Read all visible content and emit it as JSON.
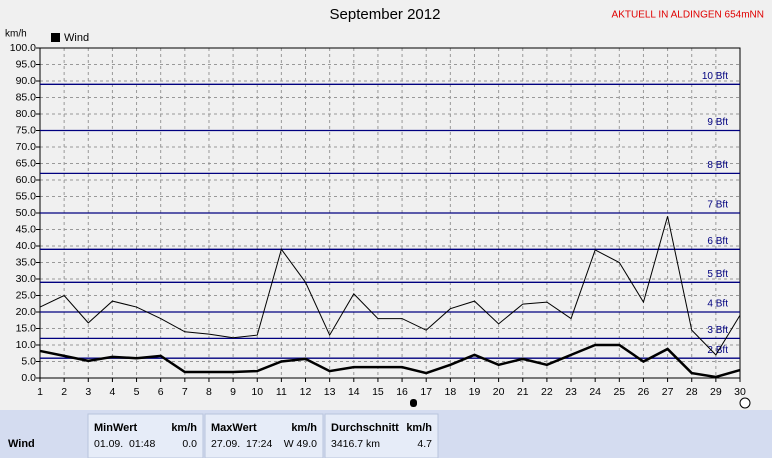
{
  "chart_data": {
    "type": "line",
    "title": "September 2012",
    "subtitle": "AKTUELL IN ALDINGEN 654mNN",
    "y_label": "km/h",
    "categories": [
      "1",
      "2",
      "3",
      "4",
      "5",
      "6",
      "7",
      "8",
      "9",
      "10",
      "11",
      "12",
      "13",
      "14",
      "15",
      "16",
      "17",
      "18",
      "19",
      "20",
      "21",
      "22",
      "23",
      "24",
      "25",
      "26",
      "27",
      "28",
      "29",
      "30"
    ],
    "series": [
      {
        "color": "#000000",
        "width": 1,
        "values": [
          21.5,
          25,
          16.7,
          23.3,
          21.5,
          18,
          14,
          13.3,
          12.2,
          13,
          39,
          29,
          13,
          25.5,
          18,
          18,
          14.5,
          21,
          23.3,
          16.4,
          22.4,
          23,
          18,
          38.8,
          35,
          23,
          49,
          14.5,
          7,
          19
        ]
      },
      {
        "name": "Wind",
        "color": "#000000",
        "width": 2.5,
        "values": [
          8.2,
          6.7,
          5.2,
          6.4,
          6,
          6.7,
          1.8,
          1.8,
          1.8,
          2.1,
          5,
          5.8,
          2.1,
          3.3,
          3.3,
          3.3,
          1.5,
          4,
          7,
          4,
          5.8,
          4,
          7,
          10,
          10,
          5,
          8.8,
          1.5,
          0.3,
          2.4
        ]
      }
    ],
    "ylim": [
      0,
      100
    ],
    "yticks": [
      {
        "value": 0,
        "label": "0.0"
      },
      {
        "value": 5,
        "label": "5.0"
      },
      {
        "value": 10,
        "label": "10.0"
      },
      {
        "value": 15,
        "label": "15.0"
      },
      {
        "value": 20,
        "label": "20.0"
      },
      {
        "value": 25,
        "label": "25.0"
      },
      {
        "value": 30,
        "label": "30.0"
      },
      {
        "value": 35,
        "label": "35.0"
      },
      {
        "value": 40,
        "label": "40.0"
      },
      {
        "value": 45,
        "label": "45.0"
      },
      {
        "value": 50,
        "label": "50.0"
      },
      {
        "value": 55,
        "label": "55.0"
      },
      {
        "value": 60,
        "label": "60.0"
      },
      {
        "value": 65,
        "label": "65.0"
      },
      {
        "value": 70,
        "label": "70.0"
      },
      {
        "value": 75,
        "label": "75.0"
      },
      {
        "value": 80,
        "label": "80.0"
      },
      {
        "value": 85,
        "label": "85.0"
      },
      {
        "value": 90,
        "label": "90.0"
      },
      {
        "value": 95,
        "label": "95.0"
      },
      {
        "value": 100,
        "label": "100.0"
      }
    ],
    "reference_lines": [
      {
        "value": 6,
        "label": "2 Bft"
      },
      {
        "value": 12,
        "label": "3 Bft"
      },
      {
        "value": 20,
        "label": "4 Bft"
      },
      {
        "value": 29,
        "label": "5 Bft"
      },
      {
        "value": 39,
        "label": "6 Bft"
      },
      {
        "value": 50,
        "label": "7 Bft"
      },
      {
        "value": 62,
        "label": "8 Bft"
      },
      {
        "value": 75,
        "label": "9 Bft"
      },
      {
        "value": 89,
        "label": "10 Bft"
      }
    ],
    "reference_color": "#00007f",
    "grid": true
  },
  "table": {
    "columns": [
      {
        "title": "MinWert",
        "unit": "km/h"
      },
      {
        "title": "MaxWert",
        "unit": "km/h"
      },
      {
        "title": "Durchschnitt",
        "unit": "km/h"
      }
    ],
    "rows": [
      {
        "label": "Wind",
        "cells": [
          [
            "01.09.  01:48",
            "0.0"
          ],
          [
            "27.09.  17:24",
            "W 49.0"
          ],
          [
            "3416.7 km",
            "4.7"
          ]
        ]
      }
    ]
  }
}
